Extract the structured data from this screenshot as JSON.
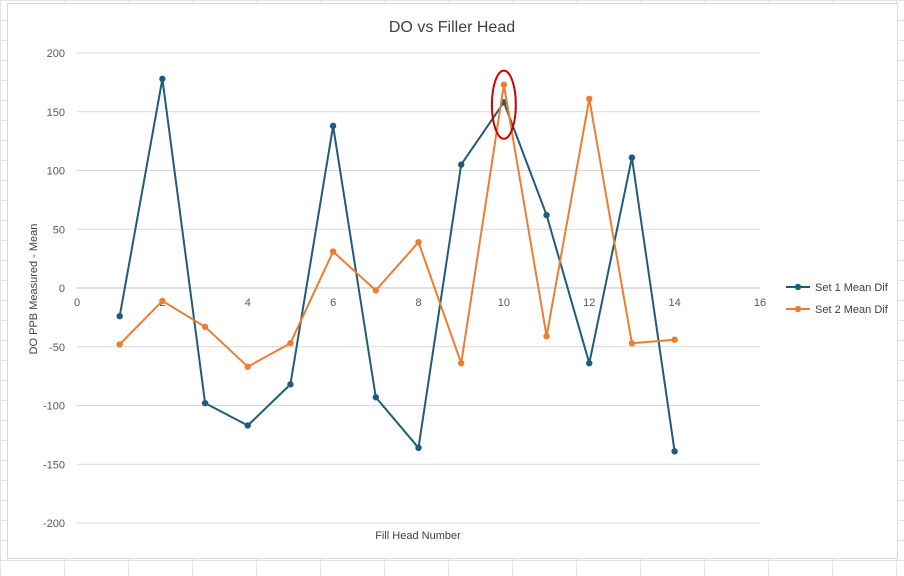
{
  "chart_data": {
    "type": "line",
    "title": "DO vs Filler Head",
    "xlabel": "Fill Head Number",
    "ylabel": "DO PPB Measured - Mean",
    "xlim": [
      0,
      16
    ],
    "ylim": [
      -200,
      200
    ],
    "x_ticks": [
      0,
      2,
      4,
      6,
      8,
      10,
      12,
      14,
      16
    ],
    "y_ticks": [
      -200,
      -150,
      -100,
      -50,
      0,
      50,
      100,
      150,
      200
    ],
    "grid": true,
    "legend_position": "right",
    "series": [
      {
        "name": "Set 1 Mean Dif",
        "color": "#1f5c7a",
        "x": [
          1,
          2,
          3,
          4,
          5,
          6,
          7,
          8,
          9,
          10,
          11,
          12,
          13,
          14
        ],
        "y": [
          -24,
          178,
          -98,
          -117,
          -82,
          138,
          -93,
          -136,
          105,
          158,
          62,
          -64,
          111,
          -139
        ]
      },
      {
        "name": "Set 2 Mean Dif",
        "color": "#ed7d31",
        "x": [
          1,
          2,
          3,
          4,
          5,
          6,
          7,
          8,
          9,
          10,
          11,
          12,
          13,
          14
        ],
        "y": [
          -48,
          -11,
          -33,
          -67,
          -47,
          31,
          -2,
          39,
          -64,
          173,
          -41,
          161,
          -47,
          -44
        ]
      }
    ],
    "annotations": [
      {
        "type": "ellipse",
        "x": 10,
        "y": 156,
        "rx": 0.28,
        "ry": 29,
        "color": "#d00000"
      }
    ]
  }
}
